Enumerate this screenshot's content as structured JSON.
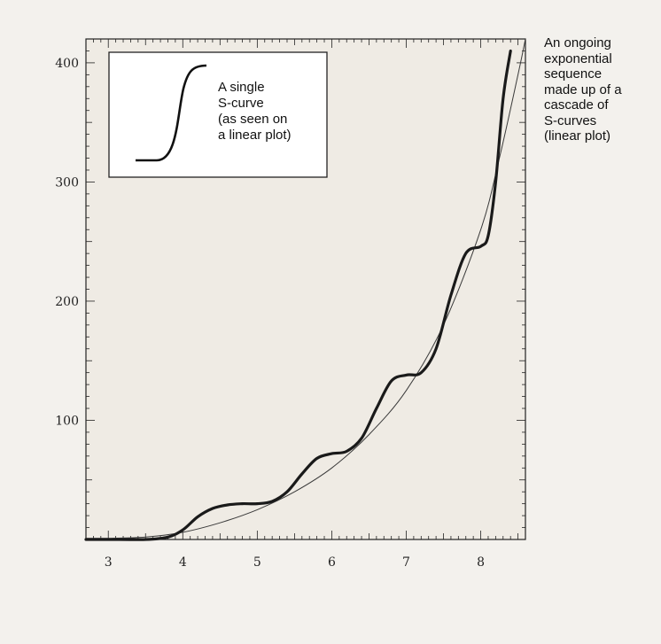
{
  "chart_data": {
    "type": "line",
    "title": "",
    "xlabel": "",
    "ylabel": "",
    "xlim": [
      2.7,
      8.6
    ],
    "ylim": [
      0,
      420
    ],
    "x_ticks": [
      3,
      4,
      5,
      6,
      7,
      8
    ],
    "y_ticks": [
      100,
      200,
      300,
      400
    ],
    "grid": false,
    "series": [
      {
        "style": "thick",
        "x": [
          2.7,
          3.0,
          3.5,
          3.8,
          4.0,
          4.2,
          4.4,
          4.6,
          4.8,
          5.0,
          5.2,
          5.4,
          5.6,
          5.8,
          6.0,
          6.2,
          6.4,
          6.6,
          6.8,
          7.0,
          7.2,
          7.4,
          7.6,
          7.8,
          8.0,
          8.1,
          8.2,
          8.3,
          8.4
        ],
        "values": [
          0,
          0,
          0,
          2,
          8,
          19,
          26,
          29,
          30,
          30,
          32,
          40,
          55,
          68,
          72,
          74,
          85,
          110,
          133,
          138,
          140,
          160,
          205,
          240,
          246,
          255,
          300,
          370,
          410
        ]
      },
      {
        "style": "thin",
        "x": [
          2.7,
          3.0,
          3.5,
          4.0,
          4.5,
          5.0,
          5.5,
          6.0,
          6.5,
          7.0,
          7.5,
          8.0,
          8.25,
          8.5,
          8.6
        ],
        "values": [
          1,
          1,
          2,
          6,
          14,
          25,
          40,
          60,
          88,
          125,
          180,
          260,
          320,
          390,
          420
        ]
      }
    ]
  },
  "inset": {
    "lines": [
      "A single",
      "S-curve",
      "(as seen on",
      "a linear plot)"
    ]
  },
  "annotation": {
    "lines": [
      "An ongoing",
      "exponential",
      "sequence",
      "made up of a",
      "cascade of",
      "S-curves",
      "(linear plot)"
    ]
  }
}
